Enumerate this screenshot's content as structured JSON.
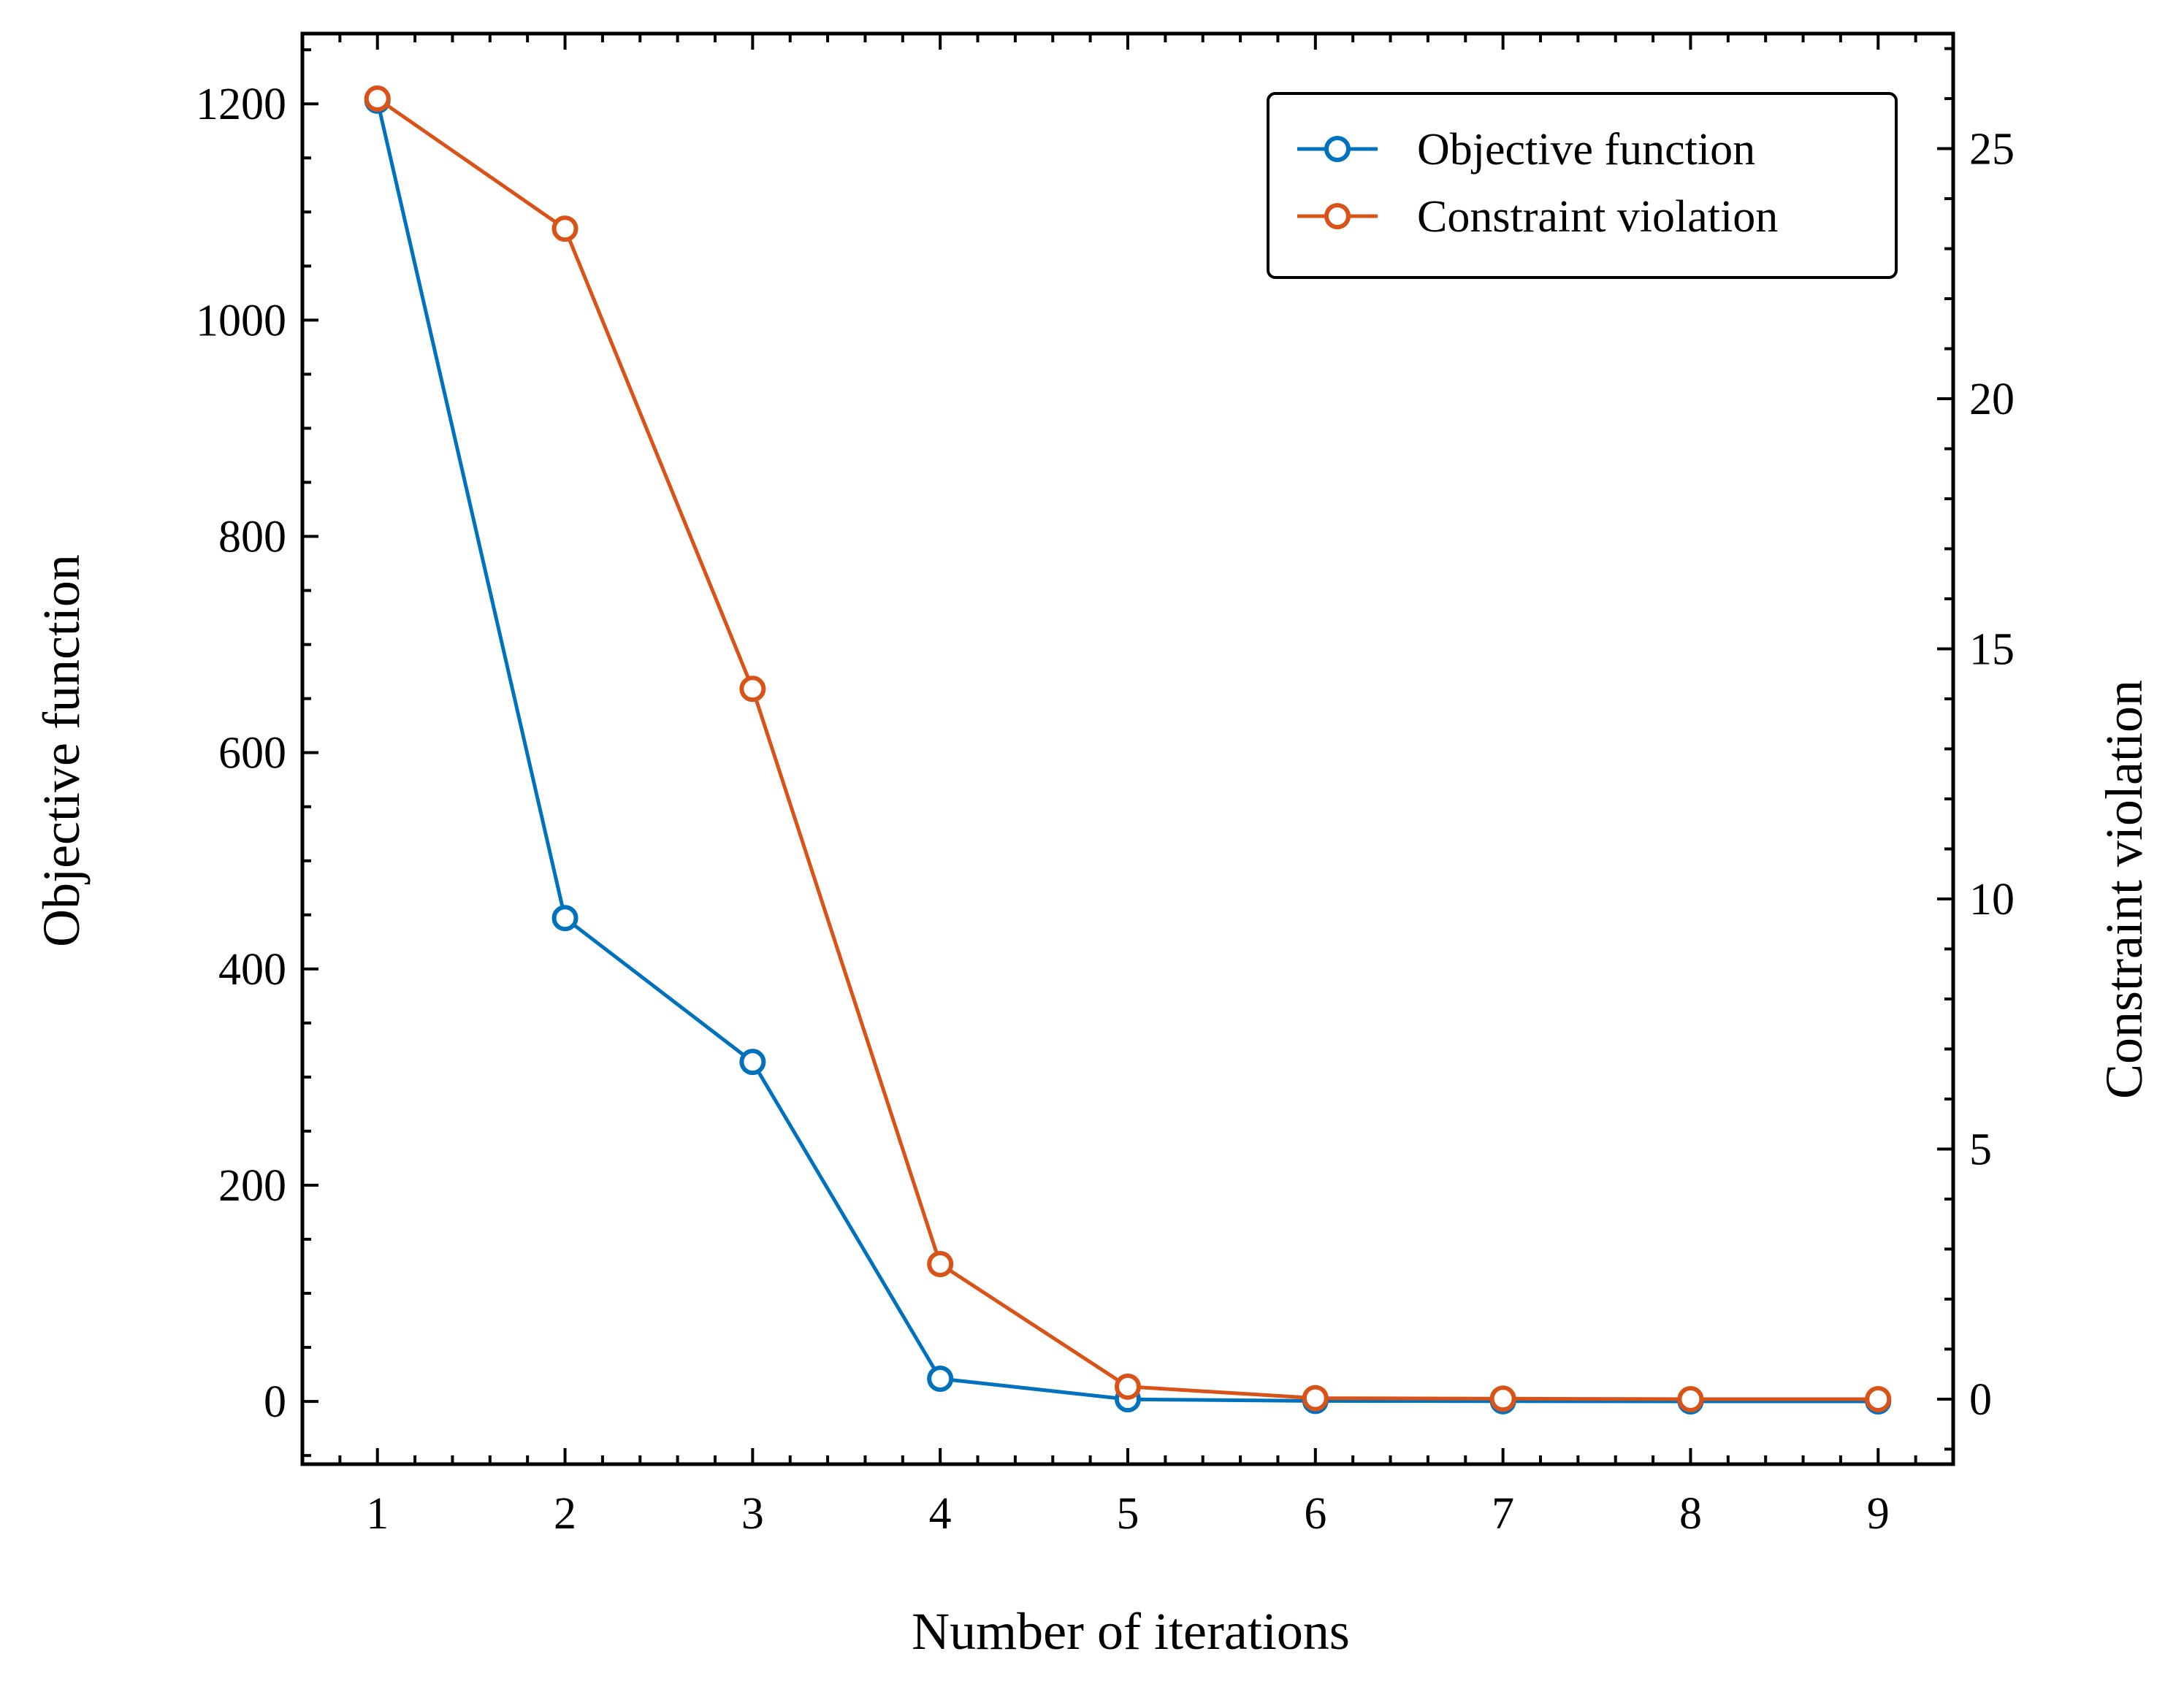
{
  "chart_data": {
    "type": "line",
    "title": "",
    "xlabel": "Number of iterations",
    "ylabel": "Objective function",
    "y2label": "Constraint violation",
    "x": [
      1,
      2,
      3,
      4,
      5,
      6,
      7,
      8,
      9
    ],
    "xlim": [
      0.6,
      9.4
    ],
    "ylim": [
      -58,
      1265
    ],
    "y2lim": [
      -1.3,
      27.3
    ],
    "xticks": [
      1,
      2,
      3,
      4,
      5,
      6,
      7,
      8,
      9
    ],
    "xtick_labels": [
      "1",
      "2",
      "3",
      "4",
      "5",
      "6",
      "7",
      "8",
      "9"
    ],
    "yticks": [
      0,
      200,
      400,
      600,
      800,
      1000,
      1200
    ],
    "ytick_labels": [
      "0",
      "200",
      "400",
      "600",
      "800",
      "1000",
      "1200"
    ],
    "y2ticks": [
      0,
      5,
      10,
      15,
      20,
      25
    ],
    "y2tick_labels": [
      "0",
      "5",
      "10",
      "15",
      "20",
      "25"
    ],
    "grid": false,
    "legend_position": "top-right",
    "series": [
      {
        "name": "Objective function",
        "axis": "left",
        "color": "#0072BD",
        "marker": "open-circle",
        "values": [
          1203,
          447,
          314,
          21,
          2,
          0.5,
          0.2,
          0.1,
          0.1
        ]
      },
      {
        "name": "Constraint violation",
        "axis": "right",
        "color": "#D95319",
        "marker": "open-circle",
        "values": [
          26.0,
          23.4,
          14.2,
          2.7,
          0.25,
          0.02,
          0.01,
          0.0,
          0.0
        ]
      }
    ]
  }
}
